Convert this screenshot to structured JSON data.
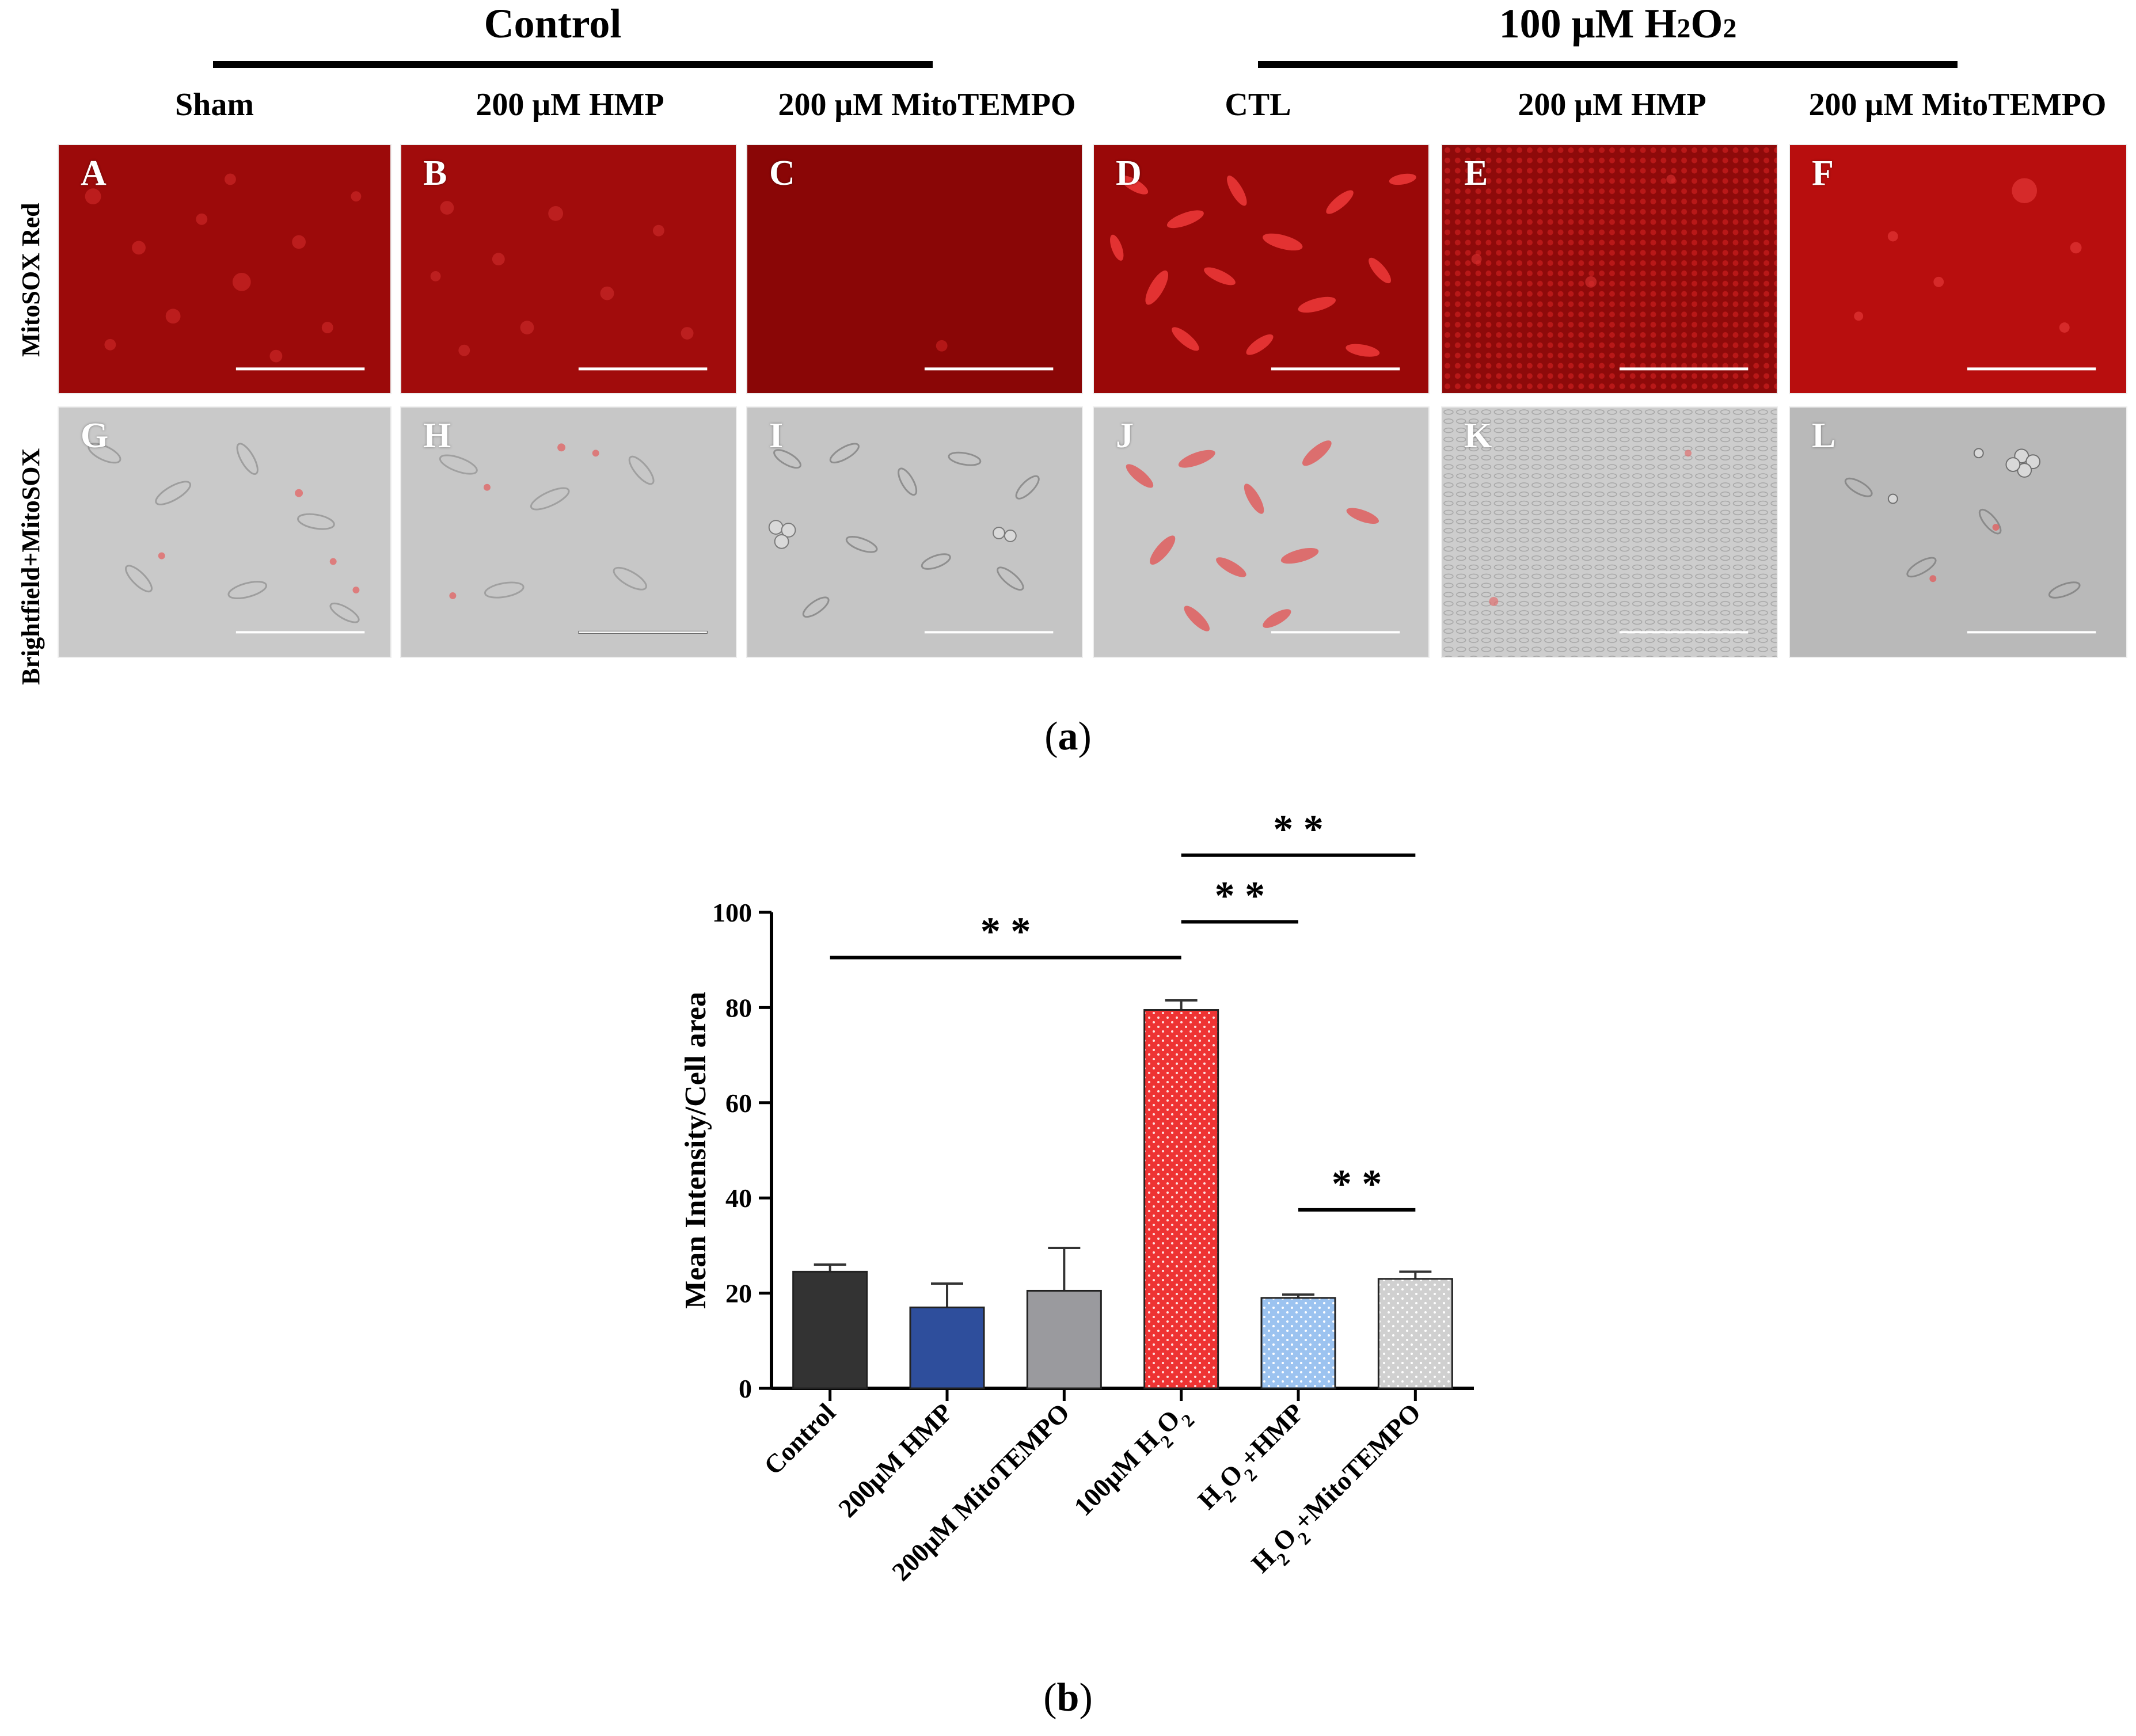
{
  "figure_a": {
    "groups": [
      {
        "title": "Control"
      },
      {
        "title_main": "100 μM H",
        "title_sub": "2",
        "title_end": "O",
        "title_sub2": "2"
      }
    ],
    "columns": [
      "Sham",
      "200 μM HMP",
      "200 μM MitoTEMPO",
      "CTL",
      "200 μM HMP",
      "200 μM MitoTEMPO"
    ],
    "rows": [
      "MitoSOX Red",
      "Brightfield+MitoSOX"
    ],
    "panel_letters_top": [
      "A",
      "B",
      "C",
      "D",
      "E",
      "F"
    ],
    "panel_letters_bottom": [
      "G",
      "H",
      "I",
      "J",
      "K",
      "L"
    ],
    "caption": {
      "open": "(",
      "letter": "a",
      "close": ")"
    }
  },
  "figure_b": {
    "caption": {
      "open": "(",
      "letter": "b",
      "close": ")"
    }
  },
  "chart_data": {
    "type": "bar",
    "categories": [
      "Control",
      "200μM HMP",
      "200μM MitoTEMPO",
      "100μM H2O2",
      "H2O2+HMP",
      "H2O2+MitoTEMPO"
    ],
    "values": [
      24.5,
      17,
      20.5,
      79.5,
      19,
      23
    ],
    "errors": [
      1.5,
      5,
      9,
      2,
      0.7,
      1.5
    ],
    "colors": [
      "#333333",
      "#2e4e9c",
      "#9a9a9e",
      "#ee3333",
      "#9cc3f0",
      "#d0d0d0"
    ],
    "patterned": [
      false,
      false,
      false,
      true,
      true,
      true
    ],
    "ylabel": "Mean Intensity/Cell area",
    "ylim": [
      0,
      100
    ],
    "yticks": [
      0,
      20,
      40,
      60,
      80,
      100
    ],
    "significance": [
      {
        "from": 0,
        "to": 3,
        "label": "* *"
      },
      {
        "from": 3,
        "to": 4,
        "label": "* *"
      },
      {
        "from": 3,
        "to": 5,
        "label": "* *"
      },
      {
        "from": 4,
        "to": 5,
        "label": "* *"
      }
    ]
  }
}
